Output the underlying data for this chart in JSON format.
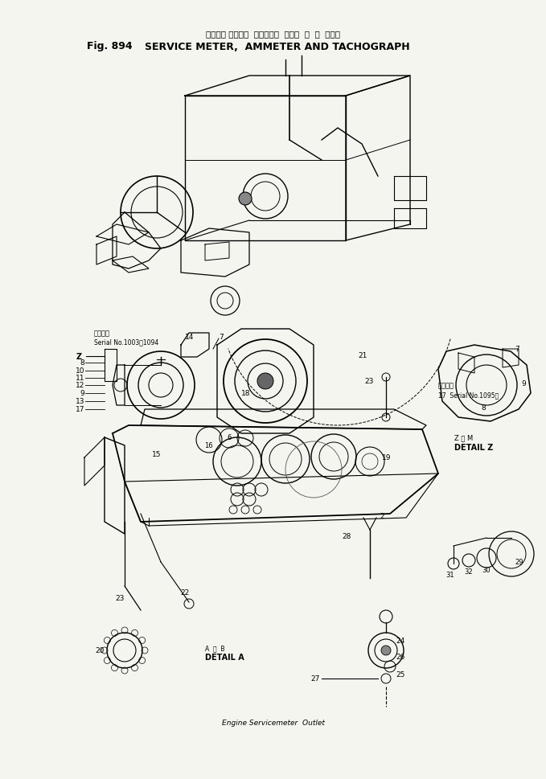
{
  "fig_label": "Fig. 894",
  "title_japanese": "サービス メータ，  アンメータ  および  タ  コ  グラフ",
  "title_english": "SERVICE METER,  AMMETER AND TACHOGRAPH",
  "bg_color": "#f5f5f0",
  "text_color": "#000000",
  "footer_text": "Engine Servicemeter  Outlet"
}
